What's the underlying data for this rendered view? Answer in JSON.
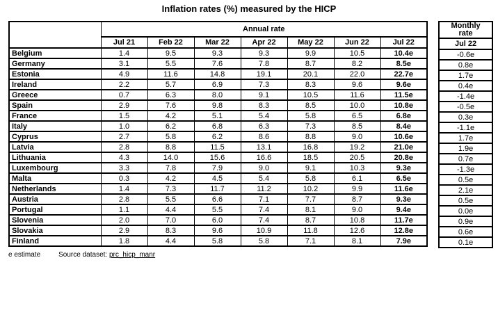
{
  "chart_data": {
    "type": "table",
    "title": "Inflation rates (%) measured by the HICP",
    "groups": {
      "annual": "Annual rate",
      "monthly": "Monthly rate"
    },
    "annual_columns": [
      "Jul 21",
      "Feb 22",
      "Mar 22",
      "Apr 22",
      "May 22",
      "Jun 22",
      "Jul 22"
    ],
    "monthly_column": "Jul 22",
    "rows": [
      {
        "country": "Belgium",
        "annual": [
          "1.4",
          "9.5",
          "9.3",
          "9.3",
          "9.9",
          "10.5",
          "10.4e"
        ],
        "monthly": "-0.6e"
      },
      {
        "country": "Germany",
        "annual": [
          "3.1",
          "5.5",
          "7.6",
          "7.8",
          "8.7",
          "8.2",
          "8.5e"
        ],
        "monthly": "0.8e"
      },
      {
        "country": "Estonia",
        "annual": [
          "4.9",
          "11.6",
          "14.8",
          "19.1",
          "20.1",
          "22.0",
          "22.7e"
        ],
        "monthly": "1.7e"
      },
      {
        "country": "Ireland",
        "annual": [
          "2.2",
          "5.7",
          "6.9",
          "7.3",
          "8.3",
          "9.6",
          "9.6e"
        ],
        "monthly": "0.4e"
      },
      {
        "country": "Greece",
        "annual": [
          "0.7",
          "6.3",
          "8.0",
          "9.1",
          "10.5",
          "11.6",
          "11.5e"
        ],
        "monthly": "-1.4e"
      },
      {
        "country": "Spain",
        "annual": [
          "2.9",
          "7.6",
          "9.8",
          "8.3",
          "8.5",
          "10.0",
          "10.8e"
        ],
        "monthly": "-0.5e"
      },
      {
        "country": "France",
        "annual": [
          "1.5",
          "4.2",
          "5.1",
          "5.4",
          "5.8",
          "6.5",
          "6.8e"
        ],
        "monthly": "0.3e"
      },
      {
        "country": "Italy",
        "annual": [
          "1.0",
          "6.2",
          "6.8",
          "6.3",
          "7.3",
          "8.5",
          "8.4e"
        ],
        "monthly": "-1.1e"
      },
      {
        "country": "Cyprus",
        "annual": [
          "2.7",
          "5.8",
          "6.2",
          "8.6",
          "8.8",
          "9.0",
          "10.6e"
        ],
        "monthly": "1.7e"
      },
      {
        "country": "Latvia",
        "annual": [
          "2.8",
          "8.8",
          "11.5",
          "13.1",
          "16.8",
          "19.2",
          "21.0e"
        ],
        "monthly": "1.9e"
      },
      {
        "country": "Lithuania",
        "annual": [
          "4.3",
          "14.0",
          "15.6",
          "16.6",
          "18.5",
          "20.5",
          "20.8e"
        ],
        "monthly": "0.7e"
      },
      {
        "country": "Luxembourg",
        "annual": [
          "3.3",
          "7.8",
          "7.9",
          "9.0",
          "9.1",
          "10.3",
          "9.3e"
        ],
        "monthly": "-1.3e"
      },
      {
        "country": "Malta",
        "annual": [
          "0.3",
          "4.2",
          "4.5",
          "5.4",
          "5.8",
          "6.1",
          "6.5e"
        ],
        "monthly": "0.5e"
      },
      {
        "country": "Netherlands",
        "annual": [
          "1.4",
          "7.3",
          "11.7",
          "11.2",
          "10.2",
          "9.9",
          "11.6e"
        ],
        "monthly": "2.1e"
      },
      {
        "country": "Austria",
        "annual": [
          "2.8",
          "5.5",
          "6.6",
          "7.1",
          "7.7",
          "8.7",
          "9.3e"
        ],
        "monthly": "0.5e"
      },
      {
        "country": "Portugal",
        "annual": [
          "1.1",
          "4.4",
          "5.5",
          "7.4",
          "8.1",
          "9.0",
          "9.4e"
        ],
        "monthly": "0.0e"
      },
      {
        "country": "Slovenia",
        "annual": [
          "2.0",
          "7.0",
          "6.0",
          "7.4",
          "8.7",
          "10.8",
          "11.7e"
        ],
        "monthly": "0.9e"
      },
      {
        "country": "Slovakia",
        "annual": [
          "2.9",
          "8.3",
          "9.6",
          "10.9",
          "11.8",
          "12.6",
          "12.8e"
        ],
        "monthly": "0.6e"
      },
      {
        "country": "Finland",
        "annual": [
          "1.8",
          "4.4",
          "5.8",
          "5.8",
          "7.1",
          "8.1",
          "7.9e"
        ],
        "monthly": "0.1e"
      }
    ]
  },
  "footer": {
    "estimate_note": "e estimate",
    "source_label": "Source dataset:",
    "source_link": "prc_hicp_manr"
  }
}
